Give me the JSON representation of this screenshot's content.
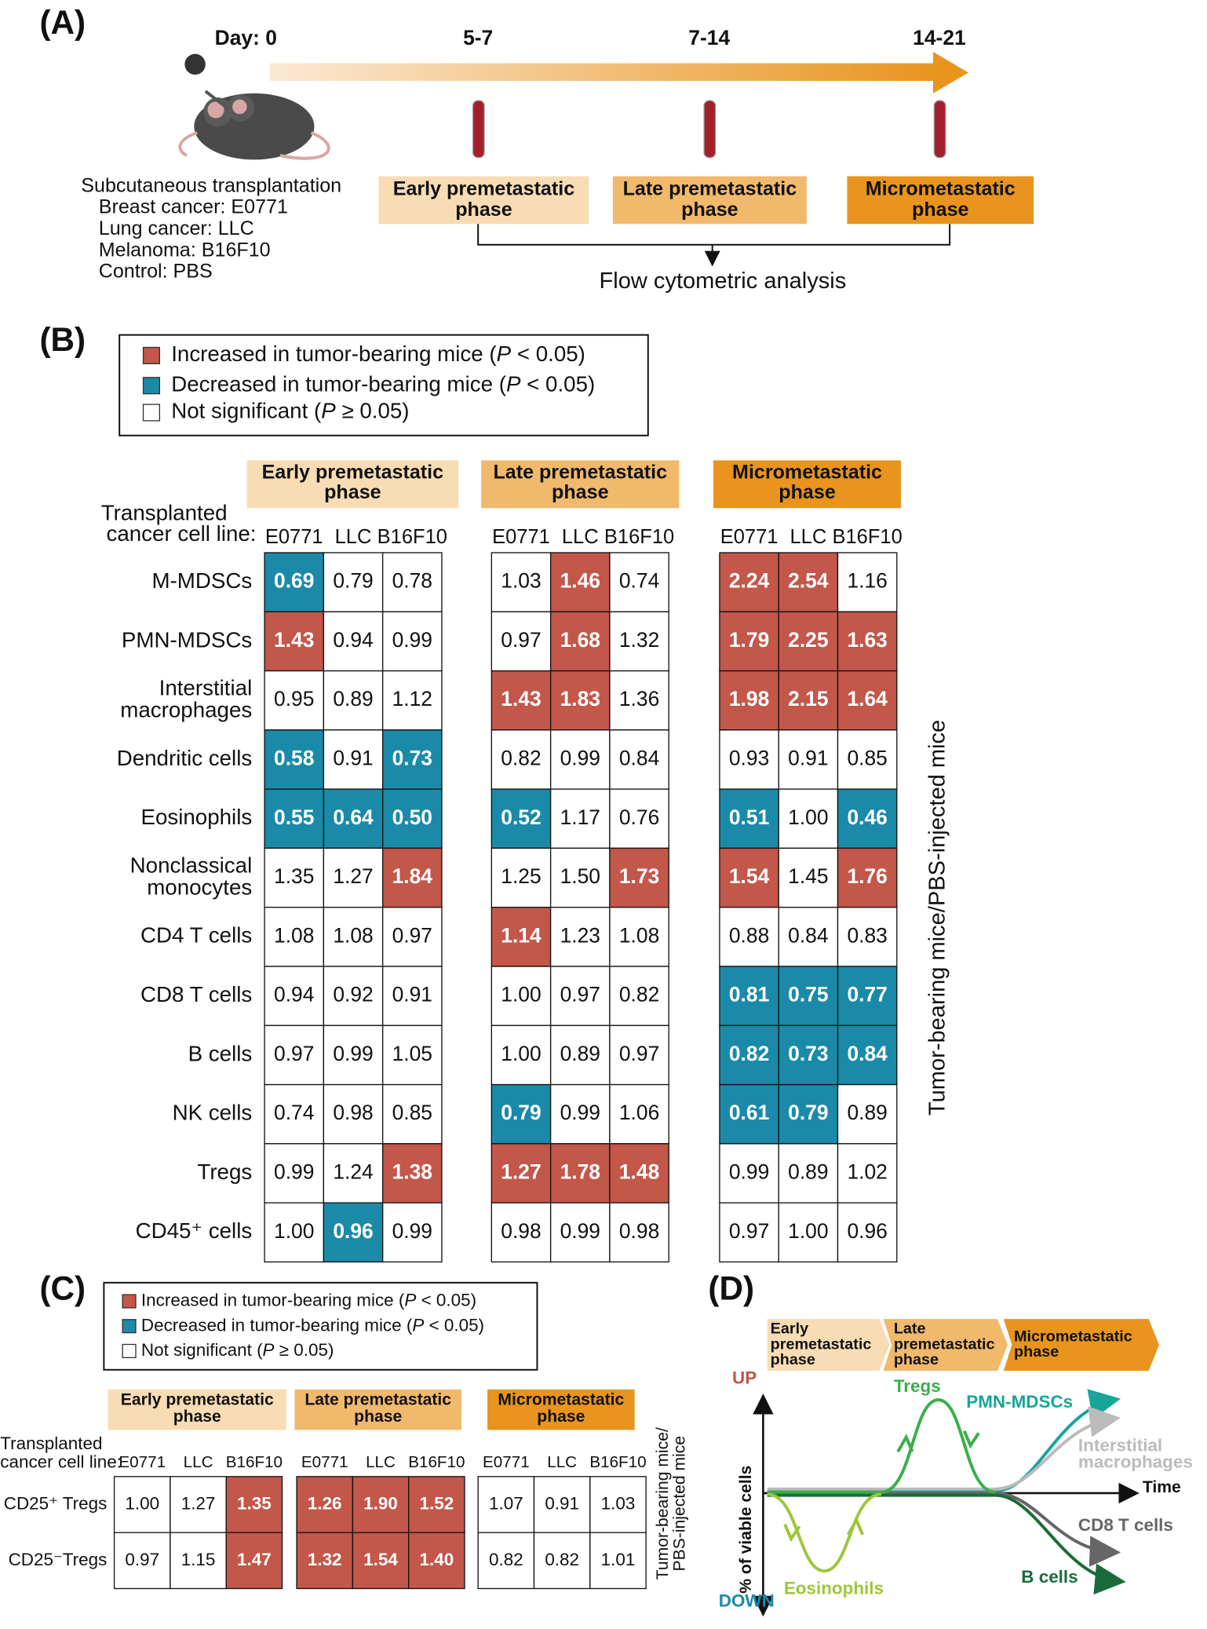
{
  "colors": {
    "up": "#c2574a",
    "down": "#1b8aa8",
    "ns": "#ffffff",
    "early": "#f8dcb4",
    "late": "#f1b96c",
    "micro": "#e8941e"
  },
  "panel_a": {
    "label": "(A)",
    "day_labels": [
      "Day: 0",
      "5-7",
      "7-14",
      "14-21"
    ],
    "transplant": [
      "Subcutaneous transplantation",
      "Breast cancer: E0771",
      "Lung cancer: LLC",
      "Melanoma: B16F10",
      "Control: PBS"
    ],
    "phases": [
      [
        "Early premetastatic",
        "phase"
      ],
      [
        "Late premetastatic",
        "phase"
      ],
      [
        "Micrometastatic",
        "phase"
      ]
    ],
    "analysis": "Flow cytometric analysis"
  },
  "panel_b": {
    "label": "(B)",
    "legend": [
      {
        "key": "up",
        "before": "Increased in tumor-bearing mice (",
        "italic": "P",
        "after": " < 0.05)"
      },
      {
        "key": "down",
        "before": "Decreased in tumor-bearing mice (",
        "italic": "P",
        "after": " < 0.05)"
      },
      {
        "key": "ns",
        "before": "Not significant (",
        "italic": "P",
        "after": " ≥ 0.05)"
      }
    ],
    "phases": [
      [
        "Early premetastatic",
        "phase"
      ],
      [
        "Late premetastatic",
        "phase"
      ],
      [
        "Micrometastatic",
        "phase"
      ]
    ],
    "cell_line_label": [
      "Transplanted",
      "cancer cell line:"
    ],
    "cell_lines": [
      "E0771",
      "LLC",
      "B16F10"
    ],
    "y_label": [
      "Tumor-bearing mice/PBS-injected mice"
    ],
    "rows": [
      {
        "label": [
          "M-MDSCs"
        ],
        "values": [
          "0.69",
          "0.79",
          "0.78",
          "1.03",
          "1.46",
          "0.74",
          "2.24",
          "2.54",
          "1.16"
        ],
        "sig": [
          "down",
          "ns",
          "ns",
          "ns",
          "up",
          "ns",
          "up",
          "up",
          "ns"
        ]
      },
      {
        "label": [
          "PMN-MDSCs"
        ],
        "values": [
          "1.43",
          "0.94",
          "0.99",
          "0.97",
          "1.68",
          "1.32",
          "1.79",
          "2.25",
          "1.63"
        ],
        "sig": [
          "up",
          "ns",
          "ns",
          "ns",
          "up",
          "ns",
          "up",
          "up",
          "up"
        ]
      },
      {
        "label": [
          "Interstitial",
          "macrophages"
        ],
        "values": [
          "0.95",
          "0.89",
          "1.12",
          "1.43",
          "1.83",
          "1.36",
          "1.98",
          "2.15",
          "1.64"
        ],
        "sig": [
          "ns",
          "ns",
          "ns",
          "up",
          "up",
          "ns",
          "up",
          "up",
          "up"
        ]
      },
      {
        "label": [
          "Dendritic cells"
        ],
        "values": [
          "0.58",
          "0.91",
          "0.73",
          "0.82",
          "0.99",
          "0.84",
          "0.93",
          "0.91",
          "0.85"
        ],
        "sig": [
          "down",
          "ns",
          "down",
          "ns",
          "ns",
          "ns",
          "ns",
          "ns",
          "ns"
        ]
      },
      {
        "label": [
          "Eosinophils"
        ],
        "values": [
          "0.55",
          "0.64",
          "0.50",
          "0.52",
          "1.17",
          "0.76",
          "0.51",
          "1.00",
          "0.46"
        ],
        "sig": [
          "down",
          "down",
          "down",
          "down",
          "ns",
          "ns",
          "down",
          "ns",
          "down"
        ]
      },
      {
        "label": [
          "Nonclassical",
          "monocytes"
        ],
        "values": [
          "1.35",
          "1.27",
          "1.84",
          "1.25",
          "1.50",
          "1.73",
          "1.54",
          "1.45",
          "1.76"
        ],
        "sig": [
          "ns",
          "ns",
          "up",
          "ns",
          "ns",
          "up",
          "up",
          "ns",
          "up"
        ]
      },
      {
        "label": [
          "CD4 T cells"
        ],
        "values": [
          "1.08",
          "1.08",
          "0.97",
          "1.14",
          "1.23",
          "1.08",
          "0.88",
          "0.84",
          "0.83"
        ],
        "sig": [
          "ns",
          "ns",
          "ns",
          "up",
          "ns",
          "ns",
          "ns",
          "ns",
          "ns"
        ]
      },
      {
        "label": [
          "CD8 T cells"
        ],
        "values": [
          "0.94",
          "0.92",
          "0.91",
          "1.00",
          "0.97",
          "0.82",
          "0.81",
          "0.75",
          "0.77"
        ],
        "sig": [
          "ns",
          "ns",
          "ns",
          "ns",
          "ns",
          "ns",
          "down",
          "down",
          "down"
        ]
      },
      {
        "label": [
          "B cells"
        ],
        "values": [
          "0.97",
          "0.99",
          "1.05",
          "1.00",
          "0.89",
          "0.97",
          "0.82",
          "0.73",
          "0.84"
        ],
        "sig": [
          "ns",
          "ns",
          "ns",
          "ns",
          "ns",
          "ns",
          "down",
          "down",
          "down"
        ]
      },
      {
        "label": [
          "NK cells"
        ],
        "values": [
          "0.74",
          "0.98",
          "0.85",
          "0.79",
          "0.99",
          "1.06",
          "0.61",
          "0.79",
          "0.89"
        ],
        "sig": [
          "ns",
          "ns",
          "ns",
          "down",
          "ns",
          "ns",
          "down",
          "down",
          "ns"
        ]
      },
      {
        "label": [
          "Tregs"
        ],
        "values": [
          "0.99",
          "1.24",
          "1.38",
          "1.27",
          "1.78",
          "1.48",
          "0.99",
          "0.89",
          "1.02"
        ],
        "sig": [
          "ns",
          "ns",
          "up",
          "up",
          "up",
          "up",
          "ns",
          "ns",
          "ns"
        ]
      },
      {
        "label": [
          "CD45⁺ cells"
        ],
        "values": [
          "1.00",
          "0.96",
          "0.99",
          "0.98",
          "0.99",
          "0.98",
          "0.97",
          "1.00",
          "0.96"
        ],
        "sig": [
          "ns",
          "down",
          "ns",
          "ns",
          "ns",
          "ns",
          "ns",
          "ns",
          "ns"
        ]
      }
    ]
  },
  "panel_c": {
    "label": "(C)",
    "legend": [
      {
        "key": "up",
        "before": "Increased in tumor-bearing mice (",
        "italic": "P",
        "after": " < 0.05)"
      },
      {
        "key": "down",
        "before": "Decreased in tumor-bearing mice (",
        "italic": "P",
        "after": " < 0.05)"
      },
      {
        "key": "ns",
        "before": "Not significant (",
        "italic": "P",
        "after": " ≥ 0.05)"
      }
    ],
    "phases": [
      [
        "Early premetastatic",
        "phase"
      ],
      [
        "Late premetastatic",
        "phase"
      ],
      [
        "Micrometastatic",
        "phase"
      ]
    ],
    "cell_line_label": [
      "Transplanted",
      "cancer cell line:"
    ],
    "cell_lines": [
      "E0771",
      "LLC",
      "B16F10"
    ],
    "y_label": [
      "Tumor-bearing mice/",
      "PBS-injected mice"
    ],
    "rows": [
      {
        "label": [
          "CD25⁺ Tregs"
        ],
        "values": [
          "1.00",
          "1.27",
          "1.35",
          "1.26",
          "1.90",
          "1.52",
          "1.07",
          "0.91",
          "1.03"
        ],
        "sig": [
          "ns",
          "ns",
          "up",
          "up",
          "up",
          "up",
          "ns",
          "ns",
          "ns"
        ]
      },
      {
        "label": [
          "CD25⁻Tregs"
        ],
        "values": [
          "0.97",
          "1.15",
          "1.47",
          "1.32",
          "1.54",
          "1.40",
          "0.82",
          "0.82",
          "1.01"
        ],
        "sig": [
          "ns",
          "ns",
          "up",
          "up",
          "up",
          "up",
          "ns",
          "ns",
          "ns"
        ]
      }
    ]
  },
  "panel_d": {
    "label": "(D)",
    "phases": [
      [
        "Early",
        "premetastatic",
        "phase"
      ],
      [
        "Late",
        "premetastatic",
        "phase"
      ],
      [
        "Micrometastatic",
        "phase"
      ]
    ],
    "up": "UP",
    "down": "DOWN",
    "y_label": "% of viable cells",
    "x_label": "Time",
    "curves": {
      "tregs": [
        "Tregs"
      ],
      "pmn": [
        "PMN-MDSCs"
      ],
      "im": [
        "Interstitial",
        "macrophages"
      ],
      "cd8": [
        "CD8 T cells"
      ],
      "b": [
        "B cells"
      ],
      "eos": [
        "Eosinophils"
      ]
    }
  }
}
